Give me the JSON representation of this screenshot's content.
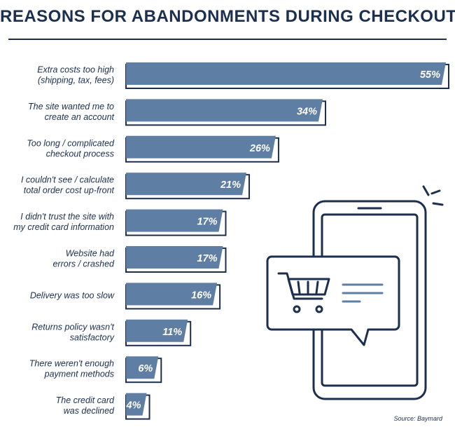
{
  "title": "REASONS FOR ABANDONMENTS DURING CHECKOUT",
  "source": "Source: Baymard",
  "colors": {
    "bar": "#5f7ea3",
    "outline": "#1c2f4e",
    "text": "#1c2f4e",
    "value_text": "#ffffff"
  },
  "illustration": {
    "icons": [
      "smartphone-icon",
      "shopping-cart-icon",
      "speech-bubble-icon",
      "notification-rays-icon"
    ]
  },
  "chart_data": {
    "type": "bar",
    "orientation": "horizontal",
    "title": "REASONS FOR ABANDONMENTS DURING CHECKOUT",
    "categories": [
      [
        "Extra costs too high",
        "(shipping, tax, fees)"
      ],
      [
        "The site wanted me to",
        "create an account"
      ],
      [
        "Too long / complicated",
        "checkout process"
      ],
      [
        "I couldn't see / calculate",
        "total order cost up-front"
      ],
      [
        "I didn't trust the site with",
        "my credit card information"
      ],
      [
        "Website had",
        "errors / crashed"
      ],
      [
        "Delivery was too slow"
      ],
      [
        "Returns policy wasn't",
        "satisfactory"
      ],
      [
        "There weren't enough",
        "payment methods"
      ],
      [
        "The credit card",
        "was declined"
      ]
    ],
    "values": [
      55,
      34,
      26,
      21,
      17,
      17,
      16,
      11,
      6,
      4
    ],
    "value_labels": [
      "55%",
      "34%",
      "26%",
      "21%",
      "17%",
      "17%",
      "16%",
      "11%",
      "6%",
      "4%"
    ],
    "xlabel": "",
    "ylabel": "",
    "grid": false,
    "legend": "none"
  }
}
